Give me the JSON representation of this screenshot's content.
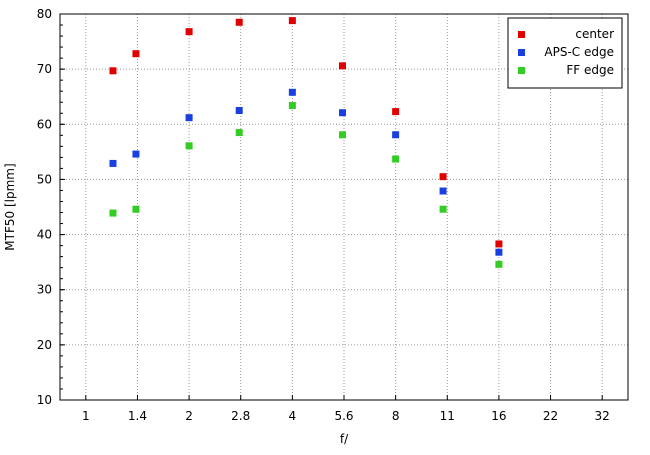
{
  "chart_data": {
    "type": "scatter",
    "title": "",
    "xlabel": "f/",
    "ylabel": "MTF50 [lpmm]",
    "ylim": [
      10,
      80
    ],
    "y_ticks": [
      "10",
      "20",
      "30",
      "40",
      "50",
      "60",
      "70",
      "80"
    ],
    "x_ticks": [
      "1",
      "1.4",
      "2",
      "2.8",
      "4",
      "5.6",
      "8",
      "11",
      "16",
      "22",
      "32"
    ],
    "x_scale": "log2 (f-stops)",
    "grid": true,
    "legend_position": "top-right",
    "series": [
      {
        "name": "center",
        "color": "#e00000",
        "points": [
          {
            "x": 1.2,
            "y": 69.7
          },
          {
            "x": 1.4,
            "y": 72.8
          },
          {
            "x": 2,
            "y": 76.8
          },
          {
            "x": 2.8,
            "y": 78.5
          },
          {
            "x": 4,
            "y": 78.8
          },
          {
            "x": 5.6,
            "y": 70.6
          },
          {
            "x": 8,
            "y": 62.3
          },
          {
            "x": 11,
            "y": 50.5
          },
          {
            "x": 16,
            "y": 38.3
          }
        ]
      },
      {
        "name": "APS-C edge",
        "color": "#1a3fe0",
        "points": [
          {
            "x": 1.2,
            "y": 52.9
          },
          {
            "x": 1.4,
            "y": 54.6
          },
          {
            "x": 2,
            "y": 61.2
          },
          {
            "x": 2.8,
            "y": 62.5
          },
          {
            "x": 4,
            "y": 65.8
          },
          {
            "x": 5.6,
            "y": 62.1
          },
          {
            "x": 8,
            "y": 58.1
          },
          {
            "x": 11,
            "y": 47.9
          },
          {
            "x": 16,
            "y": 36.8
          }
        ]
      },
      {
        "name": "FF edge",
        "color": "#33cc22",
        "points": [
          {
            "x": 1.2,
            "y": 43.9
          },
          {
            "x": 1.4,
            "y": 44.6
          },
          {
            "x": 2,
            "y": 56.1
          },
          {
            "x": 2.8,
            "y": 58.5
          },
          {
            "x": 4,
            "y": 63.4
          },
          {
            "x": 5.6,
            "y": 58.1
          },
          {
            "x": 8,
            "y": 53.7
          },
          {
            "x": 11,
            "y": 44.6
          },
          {
            "x": 16,
            "y": 34.6
          }
        ]
      }
    ]
  }
}
